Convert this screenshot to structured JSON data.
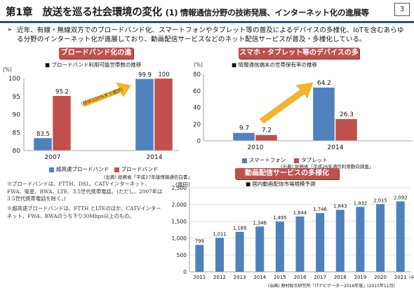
{
  "header": {
    "chapter": "第1章",
    "title": "放送を巡る社会環境の変化",
    "subtitle": "(1) 情報通信分野の技術発展、インターネット化の進展等",
    "page_number": "3"
  },
  "intro": {
    "bullet": "➢",
    "text": "近年、有線・無線双方でのブロードバンド化、スマートフォンやタブレット等の普及によるデバイスの多様化、IoTを含むあらゆる分野のインターネット化が進展しており、動画配信サービスなどのネット配信サービスが普及・多様化している。"
  },
  "broadband": {
    "section_title": "ブロードバンド化の進展",
    "subtitle": "■ ブロードバンド利用可能世帯数の推移",
    "unit": "(%)",
    "arrow_label": "(提供100%まで進捗)",
    "source": "(出典) 総務省「平成27年版情報通信白書」",
    "notes": [
      "※ブロードバンドは、FTTH、DSL、CATVインターネット、FWA、衛星、BWA、LTE、3.5世代携帯電話。(ただし、2007年は3.5世代携帯電話を除く。)",
      "※超高速ブロードバンドは、FTTH とLTEのほか、CATVインターネット、FWA、BWAのうち下り30Mbps以上のもの。"
    ]
  },
  "devices": {
    "section_title": "スマホ・タブレット等のデバイスの多様化",
    "subtitle": "■ 情報通信端末の世帯保有率の推移",
    "unit": "(%)",
    "source": "(出典) 総務省「平成26年通信利用動向調査」"
  },
  "video": {
    "section_title": "動画配信サービスの多様化",
    "subtitle": "■ 国内動画配信市場規模予測",
    "unit": "(億円)",
    "x_axis_suffix": "(年度)",
    "source": "(出典) 野村総合研究所「ITナビゲーター2016年版」(2015年11月)"
  },
  "chart_data": [
    {
      "type": "bar",
      "categories": [
        "2007",
        "2014"
      ],
      "series": [
        {
          "name": "超高速ブロードバンド",
          "values": [
            83.5,
            99.9
          ],
          "color": "#4f81bd"
        },
        {
          "name": "ブロードバンド",
          "values": [
            95.2,
            100
          ],
          "color": "#c0504d"
        }
      ],
      "ylim": [
        80,
        100
      ],
      "yticks": [
        "80",
        "85",
        "90",
        "95",
        "100"
      ],
      "data_labels": [
        [
          "83.5",
          "99.9"
        ],
        [
          "95.2",
          "100"
        ]
      ],
      "legend": "bottom",
      "grid": false
    },
    {
      "type": "bar",
      "categories": [
        "2010",
        "2014"
      ],
      "series": [
        {
          "name": "スマートフォン",
          "values": [
            9.7,
            64.2
          ],
          "color": "#4f81bd"
        },
        {
          "name": "タブレット",
          "values": [
            7.2,
            26.3
          ],
          "color": "#c0504d"
        }
      ],
      "ylim": [
        0,
        80
      ],
      "yticks": [
        "0",
        "20",
        "40",
        "60",
        "80"
      ],
      "data_labels": [
        [
          "9.7",
          "64.2"
        ],
        [
          "7.2",
          "26.3"
        ]
      ],
      "legend": "bottom",
      "grid": false
    },
    {
      "type": "bar",
      "categories": [
        "2011",
        "2012",
        "2013",
        "2014",
        "2015",
        "2016",
        "2017",
        "2018",
        "2019",
        "2020",
        "2021"
      ],
      "series": [
        {
          "values": [
            799,
            1011,
            1189,
            1346,
            1495,
            1644,
            1746,
            1843,
            1932,
            2015,
            2092
          ],
          "color": "#4f81bd"
        }
      ],
      "data_labels": [
        "799",
        "1,011",
        "1,189",
        "1,346",
        "1,495",
        "1,644",
        "1,746",
        "1,843",
        "1,932",
        "2,015",
        "2,092"
      ],
      "ylim": [
        0,
        2500
      ],
      "yticks": [
        "0",
        "500",
        "1,000",
        "1,500",
        "2,000",
        "2,500"
      ],
      "legend": "none",
      "grid": true
    }
  ]
}
